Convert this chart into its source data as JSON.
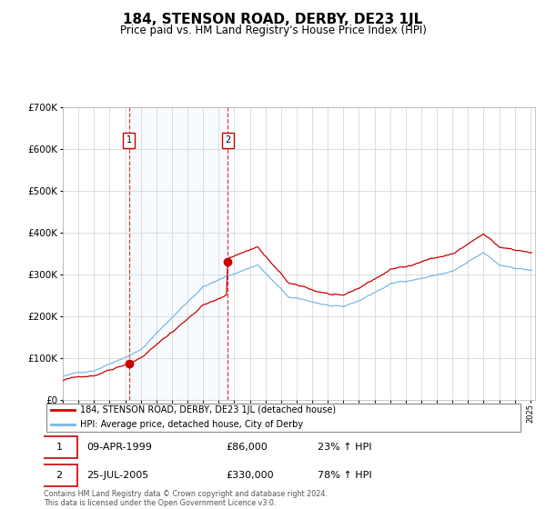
{
  "title": "184, STENSON ROAD, DERBY, DE23 1JL",
  "subtitle": "Price paid vs. HM Land Registry's House Price Index (HPI)",
  "title_fontsize": 11,
  "subtitle_fontsize": 8.5,
  "hpi_label": "HPI: Average price, detached house, City of Derby",
  "price_label": "184, STENSON ROAD, DERBY, DE23 1JL (detached house)",
  "sale1_date": "09-APR-1999",
  "sale1_price": 86000,
  "sale1_hpi_pct": "23%",
  "sale2_date": "25-JUL-2005",
  "sale2_price": 330000,
  "sale2_hpi_pct": "78%",
  "footer": "Contains HM Land Registry data © Crown copyright and database right 2024.\nThis data is licensed under the Open Government Licence v3.0.",
  "hpi_color": "#7ab8e8",
  "price_color": "#cc0000",
  "marker_color": "#cc0000",
  "dashed_line_color": "#cc0000",
  "highlight_bg": "#dceef9",
  "ylim": [
    0,
    700000
  ],
  "yticks": [
    0,
    100000,
    200000,
    300000,
    400000,
    500000,
    600000,
    700000
  ],
  "sale1_year": 1999.25,
  "sale2_year": 2005.58
}
